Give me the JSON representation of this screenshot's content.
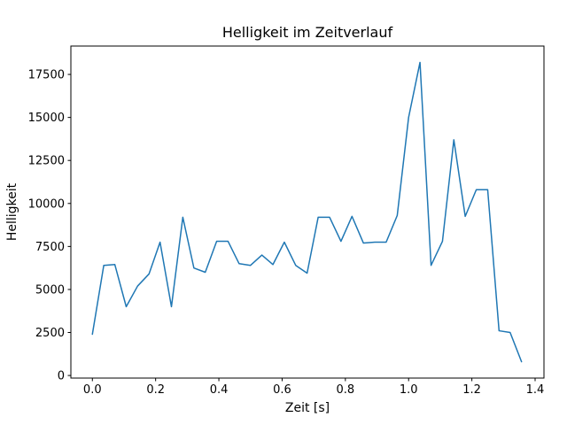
{
  "chart_data": {
    "type": "line",
    "title": "Helligkeit im Zeitverlauf",
    "xlabel": "Zeit [s]",
    "ylabel": "Helligkeit",
    "x": [
      0.0,
      0.036,
      0.071,
      0.107,
      0.143,
      0.179,
      0.214,
      0.25,
      0.286,
      0.321,
      0.357,
      0.393,
      0.429,
      0.464,
      0.5,
      0.536,
      0.571,
      0.607,
      0.643,
      0.679,
      0.714,
      0.75,
      0.786,
      0.821,
      0.857,
      0.893,
      0.929,
      0.964,
      1.0,
      1.036,
      1.071,
      1.107,
      1.143,
      1.179,
      1.214,
      1.25,
      1.286,
      1.321,
      1.357
    ],
    "y": [
      2400,
      6400,
      6450,
      4000,
      5200,
      5900,
      7750,
      4000,
      9200,
      6250,
      6000,
      7800,
      7800,
      6500,
      6400,
      7000,
      6450,
      7750,
      6400,
      5950,
      9200,
      9200,
      7800,
      9250,
      7700,
      7750,
      7750,
      9300,
      15000,
      18200,
      6400,
      7800,
      13700,
      9250,
      10800,
      10800,
      2600,
      2500,
      800
    ],
    "xlim": [
      -0.068,
      1.428
    ],
    "ylim": [
      -150,
      19150
    ],
    "xticks": [
      0.0,
      0.2,
      0.4,
      0.6,
      0.8,
      1.0,
      1.2,
      1.4
    ],
    "yticks": [
      0,
      2500,
      5000,
      7500,
      10000,
      12500,
      15000,
      17500
    ],
    "line_color": "#1f77b4",
    "axis_color": "#000000",
    "grid": false,
    "legend_position": "none"
  }
}
